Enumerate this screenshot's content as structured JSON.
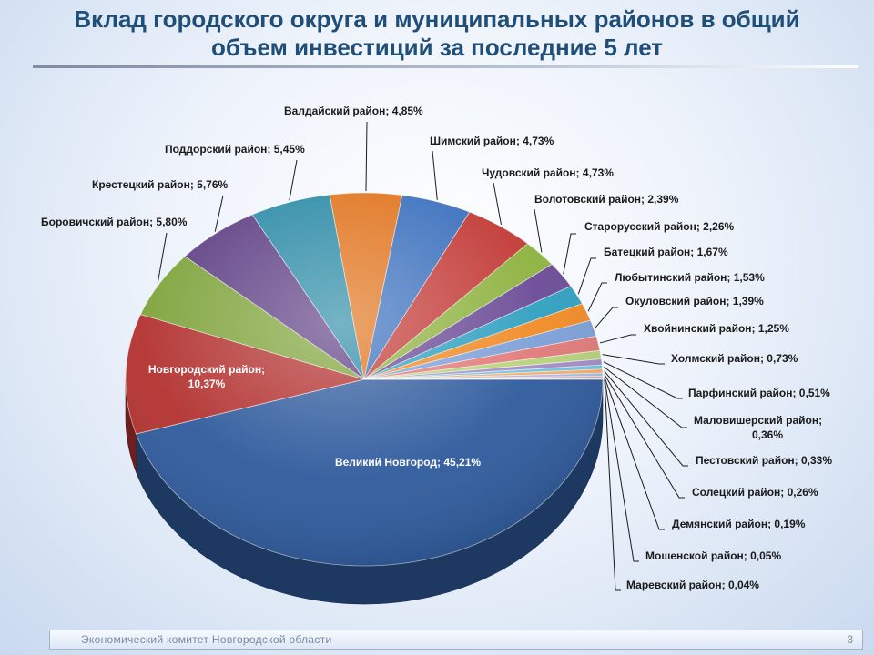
{
  "page": {
    "title_line1": "Вклад городского округа и муниципальных районов в общий",
    "title_line2": "объем инвестиций за последние 5 лет",
    "footer_org": "Экономический  комитет  Новгородской  области",
    "page_number": "3"
  },
  "chart_data": {
    "type": "pie",
    "title": "",
    "grid": false,
    "legend": "none",
    "slices": [
      {
        "label": "Великий Новгород",
        "value": 45.21,
        "value_text": "45,21%",
        "color": "#2e5a9c"
      },
      {
        "label": "Новгородский район",
        "value": 10.37,
        "value_text": "10,37%",
        "color": "#b2312f"
      },
      {
        "label": "Боровичский район",
        "value": 5.8,
        "value_text": "5,80%",
        "color": "#7ea33a"
      },
      {
        "label": "Крестецкий район",
        "value": 5.76,
        "value_text": "5,76%",
        "color": "#5e3f84"
      },
      {
        "label": "Поддорский район",
        "value": 5.45,
        "value_text": "5,45%",
        "color": "#2b8aa6"
      },
      {
        "label": "Валдайский район",
        "value": 4.85,
        "value_text": "4,85%",
        "color": "#e0731c"
      },
      {
        "label": "Шимский район",
        "value": 4.73,
        "value_text": "4,73%",
        "color": "#3a6fbd"
      },
      {
        "label": "Чудовский район",
        "value": 4.73,
        "value_text": "4,73%",
        "color": "#c23a36"
      },
      {
        "label": "Волотовский район",
        "value": 2.39,
        "value_text": "2,39%",
        "color": "#8db23f"
      },
      {
        "label": "Старорусский район",
        "value": 2.26,
        "value_text": "2,26%",
        "color": "#6a4a96"
      },
      {
        "label": "Батецкий район",
        "value": 1.67,
        "value_text": "1,67%",
        "color": "#2f9fc0"
      },
      {
        "label": "Любытинский район",
        "value": 1.53,
        "value_text": "1,53%",
        "color": "#f08a24"
      },
      {
        "label": "Окуловский район",
        "value": 1.39,
        "value_text": "1,39%",
        "color": "#7c9fd8"
      },
      {
        "label": "Хвойнинский район",
        "value": 1.25,
        "value_text": "1,25%",
        "color": "#e07a78"
      },
      {
        "label": "Холмский район",
        "value": 0.73,
        "value_text": "0,73%",
        "color": "#b7d27a"
      },
      {
        "label": "Парфинский район",
        "value": 0.51,
        "value_text": "0,51%",
        "color": "#a38cc6"
      },
      {
        "label": "Маловишерский район",
        "value": 0.36,
        "value_text": "0,36%",
        "color": "#6fc3dd"
      },
      {
        "label": "Пестовский район",
        "value": 0.33,
        "value_text": "0,33%",
        "color": "#f6ad6a"
      },
      {
        "label": "Солецкий район",
        "value": 0.26,
        "value_text": "0,26%",
        "color": "#a9bde6"
      },
      {
        "label": "Демянский район",
        "value": 0.19,
        "value_text": "0,19%",
        "color": "#eaa8a6"
      },
      {
        "label": "Мошенской район",
        "value": 0.05,
        "value_text": "0,05%",
        "color": "#cfe2a8"
      },
      {
        "label": "Маревский район",
        "value": 0.04,
        "value_text": "0,04%",
        "color": "#c6b8e0"
      }
    ]
  }
}
